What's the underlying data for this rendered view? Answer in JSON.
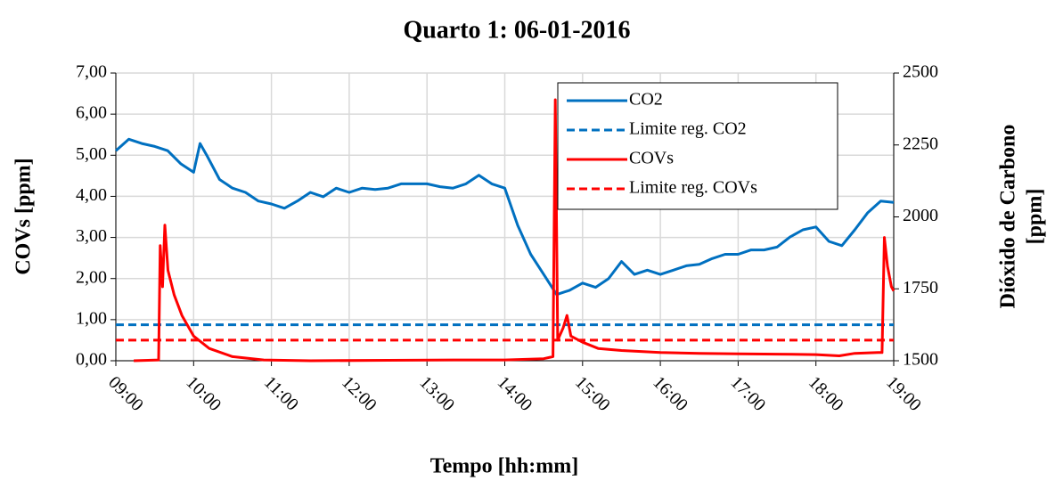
{
  "chart_data": {
    "type": "line",
    "title": "Quarto 1: 06-01-2016",
    "xlabel": "Tempo [hh:mm]",
    "ylabel": "COVs [ppm]",
    "y2label": [
      "Dióxido de Carbono",
      "[ppm]"
    ],
    "xlim": [
      9,
      19
    ],
    "xticks": [
      {
        "value": 9,
        "label": "09:00"
      },
      {
        "value": 10,
        "label": "10:00"
      },
      {
        "value": 11,
        "label": "11:00"
      },
      {
        "value": 12,
        "label": "12:00"
      },
      {
        "value": 13,
        "label": "13:00"
      },
      {
        "value": 14,
        "label": "14:00"
      },
      {
        "value": 15,
        "label": "15:00"
      },
      {
        "value": 16,
        "label": "16:00"
      },
      {
        "value": 17,
        "label": "17:00"
      },
      {
        "value": 18,
        "label": "18:00"
      },
      {
        "value": 19,
        "label": "19:00"
      }
    ],
    "ylim": [
      0,
      7
    ],
    "yticks": [
      {
        "value": 0,
        "label": "0,00"
      },
      {
        "value": 1,
        "label": "1,00"
      },
      {
        "value": 2,
        "label": "2,00"
      },
      {
        "value": 3,
        "label": "3,00"
      },
      {
        "value": 4,
        "label": "4,00"
      },
      {
        "value": 5,
        "label": "5,00"
      },
      {
        "value": 6,
        "label": "6,00"
      },
      {
        "value": 7,
        "label": "7,00"
      }
    ],
    "y2lim": [
      1500,
      2500
    ],
    "y2ticks": [
      1500,
      1750,
      2000,
      2250,
      2500
    ],
    "grid": true,
    "legend": "upper right",
    "series": [
      {
        "name": "CO2",
        "color": "#0070c0",
        "axis": "y2",
        "dashed": false,
        "x": [
          9,
          9.167,
          9.333,
          9.5,
          9.667,
          9.833,
          10,
          10.083,
          10.167,
          10.333,
          10.5,
          10.667,
          10.833,
          11,
          11.167,
          11.333,
          11.5,
          11.667,
          11.833,
          12,
          12.167,
          12.333,
          12.5,
          12.667,
          12.833,
          13,
          13.167,
          13.333,
          13.5,
          13.667,
          13.833,
          14,
          14.167,
          14.333,
          14.5,
          14.667,
          14.833,
          15,
          15.167,
          15.333,
          15.5,
          15.667,
          15.833,
          16,
          16.167,
          16.333,
          16.5,
          16.667,
          16.833,
          17,
          17.167,
          17.333,
          17.5,
          17.667,
          17.833,
          18,
          18.167,
          18.333,
          18.5,
          18.667,
          18.833,
          19
        ],
        "values": [
          2230,
          2270,
          2255,
          2245,
          2230,
          2185,
          2155,
          2255,
          2215,
          2130,
          2100,
          2085,
          2055,
          2045,
          2030,
          2055,
          2085,
          2070,
          2100,
          2085,
          2100,
          2095,
          2100,
          2115,
          2115,
          2115,
          2105,
          2100,
          2115,
          2145,
          2115,
          2100,
          1970,
          1870,
          1800,
          1730,
          1745,
          1770,
          1755,
          1785,
          1845,
          1800,
          1815,
          1800,
          1815,
          1830,
          1835,
          1855,
          1870,
          1870,
          1885,
          1885,
          1895,
          1930,
          1955,
          1965,
          1915,
          1900,
          1955,
          2015,
          2055,
          2050
        ]
      },
      {
        "name": "Limite reg. CO2",
        "color": "#0070c0",
        "axis": "y2",
        "dashed": true,
        "x": [
          9,
          19
        ],
        "values": [
          1625,
          1625
        ]
      },
      {
        "name": "COVs",
        "color": "#ff0000",
        "axis": "y",
        "dashed": false,
        "x": [
          9.23,
          9.55,
          9.57,
          9.6,
          9.63,
          9.67,
          9.75,
          9.85,
          10,
          10.2,
          10.5,
          10.9,
          11.5,
          12.5,
          13.5,
          14,
          14.5,
          14.62,
          14.65,
          14.68,
          14.75,
          14.8,
          14.85,
          15,
          15.2,
          15.5,
          16,
          16.5,
          17,
          17.5,
          18,
          18.3,
          18.5,
          18.8,
          18.85,
          18.88,
          18.92,
          18.97,
          19
        ],
        "values": [
          0,
          0.02,
          2.8,
          1.8,
          3.3,
          2.2,
          1.6,
          1.1,
          0.6,
          0.3,
          0.1,
          0.02,
          0,
          0.01,
          0.02,
          0.02,
          0.05,
          0.1,
          6.35,
          0.5,
          0.8,
          1.1,
          0.6,
          0.45,
          0.3,
          0.25,
          0.2,
          0.18,
          0.17,
          0.16,
          0.15,
          0.12,
          0.18,
          0.2,
          0.2,
          3,
          2.3,
          1.8,
          1.7
        ]
      },
      {
        "name": "Limite reg. COVs",
        "color": "#ff0000",
        "axis": "y",
        "dashed": true,
        "x": [
          9,
          19
        ],
        "values": [
          0.5,
          0.5
        ]
      }
    ]
  }
}
